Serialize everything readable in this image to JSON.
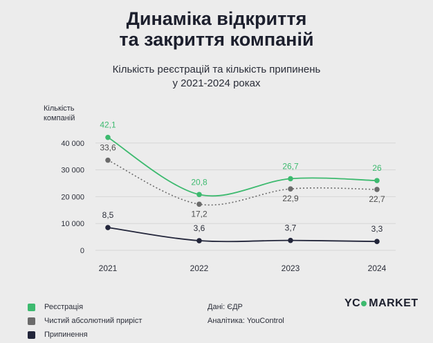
{
  "header": {
    "title_line1": "Динаміка відкриття",
    "title_line2": "та закриття компаній",
    "subtitle_line1": "Кількість реєстрацій та кількість припинень",
    "subtitle_line2": "у 2021-2024 роках"
  },
  "chart_data": {
    "type": "line",
    "title": "Динаміка відкриття та закриття компаній",
    "subtitle": "Кількість реєстрацій та кількість припинень у 2021-2024 роках",
    "ylabel_line1": "Кількість",
    "ylabel_line2": "компаній",
    "x": [
      "2021",
      "2022",
      "2023",
      "2024"
    ],
    "ylim": [
      0,
      50000
    ],
    "yticks": [
      0,
      10000,
      20000,
      30000,
      40000
    ],
    "ytick_labels": [
      "0",
      "10 000",
      "20 000",
      "30 000",
      "40 000"
    ],
    "grid": true,
    "legend_position": "bottom-left",
    "series": [
      {
        "name": "Реєстрація",
        "color": "#3dba6f",
        "style": "solid",
        "values": [
          42100,
          20800,
          26700,
          26000
        ],
        "labels": [
          "42,1",
          "20,8",
          "26,7",
          "26"
        ]
      },
      {
        "name": "Чистий абсолютний приріст",
        "color": "#6b6b6b",
        "style": "dotted",
        "values": [
          33600,
          17200,
          22900,
          22700
        ],
        "labels": [
          "33,6",
          "17,2",
          "22,9",
          "22,7"
        ]
      },
      {
        "name": "Припинення",
        "color": "#22253a",
        "style": "solid",
        "values": [
          8500,
          3600,
          3700,
          3300
        ],
        "labels": [
          "8,5",
          "3,6",
          "3,7",
          "3,3"
        ]
      }
    ]
  },
  "legend": {
    "items": [
      {
        "label": "Реєстрація",
        "color": "#3dba6f"
      },
      {
        "label": "Чистий абсолютний приріст",
        "color": "#6b6b6b"
      },
      {
        "label": "Припинення",
        "color": "#22253a"
      }
    ]
  },
  "source": {
    "data_line": "Дані: ЄДР",
    "analytics_line": "Аналітика: YouControl"
  },
  "brand": {
    "part1": "YC",
    "part2": "MARKET"
  }
}
